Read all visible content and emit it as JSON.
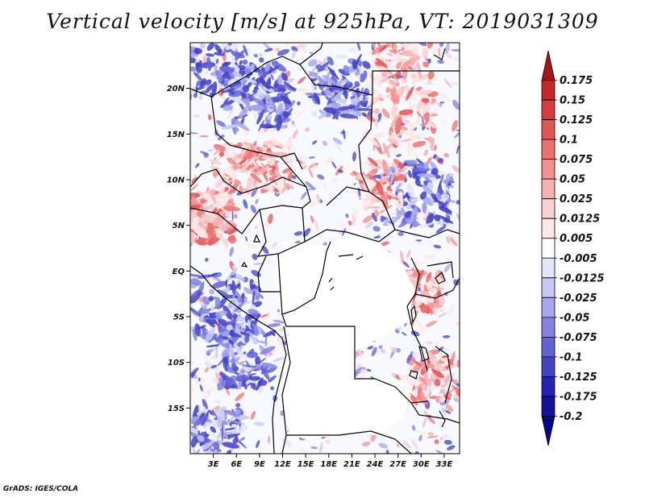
{
  "title": "Vertical velocity [m/s] at 925hPa, VT: 2019031309",
  "credit": "GrADS: IGES/COLA",
  "map": {
    "lon_range": [
      0,
      35
    ],
    "lat_range": [
      -20,
      25
    ],
    "lat_ticks": [
      {
        "value": 20,
        "label": "20N"
      },
      {
        "value": 15,
        "label": "15N"
      },
      {
        "value": 10,
        "label": "10N"
      },
      {
        "value": 5,
        "label": "5N"
      },
      {
        "value": 0,
        "label": "EQ"
      },
      {
        "value": -5,
        "label": "5S"
      },
      {
        "value": -10,
        "label": "10S"
      },
      {
        "value": -15,
        "label": "15S"
      }
    ],
    "lon_ticks": [
      {
        "value": 3,
        "label": "3E"
      },
      {
        "value": 6,
        "label": "6E"
      },
      {
        "value": 9,
        "label": "9E"
      },
      {
        "value": 12,
        "label": "12E"
      },
      {
        "value": 15,
        "label": "15E"
      },
      {
        "value": 18,
        "label": "18E"
      },
      {
        "value": 21,
        "label": "21E"
      },
      {
        "value": 24,
        "label": "24E"
      },
      {
        "value": 27,
        "label": "27E"
      },
      {
        "value": 30,
        "label": "30E"
      },
      {
        "value": 33,
        "label": "33E"
      }
    ]
  },
  "colorbar": {
    "labels": [
      "0.175",
      "0.15",
      "0.125",
      "0.1",
      "0.075",
      "0.05",
      "0.025",
      "0.0125",
      "0.005",
      "-0.005",
      "-0.0125",
      "-0.025",
      "-0.05",
      "-0.075",
      "-0.1",
      "-0.125",
      "-0.175",
      "-0.2"
    ],
    "colors": [
      "#a01818",
      "#c22828",
      "#d83c3c",
      "#e45656",
      "#ec7272",
      "#f29090",
      "#f6b0b0",
      "#fad0d0",
      "#fde8e8",
      "#ffffff",
      "#e4e4fa",
      "#c8c8f4",
      "#a8a8ee",
      "#8484e2",
      "#6262d6",
      "#4242c6",
      "#2424b0",
      "#12129a",
      "#060688"
    ]
  }
}
